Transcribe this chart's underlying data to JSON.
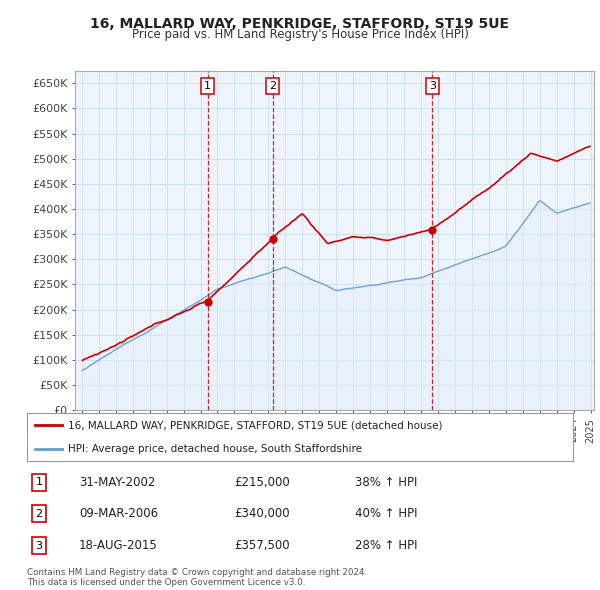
{
  "title": "16, MALLARD WAY, PENKRIDGE, STAFFORD, ST19 5UE",
  "subtitle": "Price paid vs. HM Land Registry's House Price Index (HPI)",
  "ylim": [
    0,
    675000
  ],
  "yticks": [
    0,
    50000,
    100000,
    150000,
    200000,
    250000,
    300000,
    350000,
    400000,
    450000,
    500000,
    550000,
    600000,
    650000
  ],
  "ytick_labels": [
    "£0",
    "£50K",
    "£100K",
    "£150K",
    "£200K",
    "£250K",
    "£300K",
    "£350K",
    "£400K",
    "£450K",
    "£500K",
    "£550K",
    "£600K",
    "£650K"
  ],
  "sale_prices": [
    215000,
    340000,
    357500
  ],
  "sale_labels": [
    "1",
    "2",
    "3"
  ],
  "vline_color": "#cc0000",
  "red_line_color": "#cc0000",
  "blue_line_color": "#6699cc",
  "blue_fill_color": "#ddeeff",
  "grid_color": "#ccddee",
  "background_color": "#eef4fb",
  "legend_label_red": "16, MALLARD WAY, PENKRIDGE, STAFFORD, ST19 5UE (detached house)",
  "legend_label_blue": "HPI: Average price, detached house, South Staffordshire",
  "table_rows": [
    [
      "1",
      "31-MAY-2002",
      "£215,000",
      "38% ↑ HPI"
    ],
    [
      "2",
      "09-MAR-2006",
      "£340,000",
      "40% ↑ HPI"
    ],
    [
      "3",
      "18-AUG-2015",
      "£357,500",
      "28% ↑ HPI"
    ]
  ],
  "footnote": "Contains HM Land Registry data © Crown copyright and database right 2024.\nThis data is licensed under the Open Government Licence v3.0."
}
